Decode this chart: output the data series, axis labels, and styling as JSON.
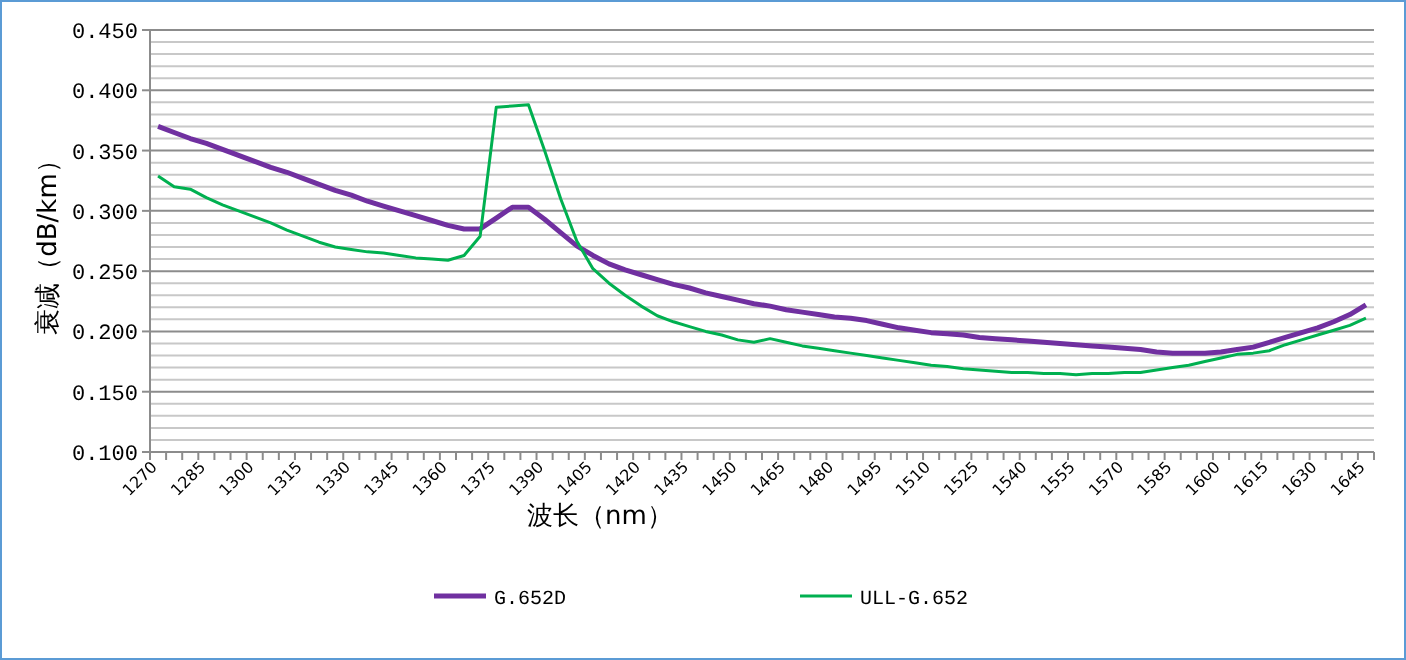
{
  "chart_data": {
    "type": "line",
    "xlabel": "波长（nm）",
    "ylabel": "衰减（dB/km）",
    "categories": [
      "1270",
      null,
      null,
      "1285",
      null,
      null,
      "1300",
      null,
      null,
      "1315",
      null,
      null,
      "1330",
      null,
      null,
      "1345",
      null,
      null,
      "1360",
      null,
      null,
      "1375",
      null,
      null,
      "1390",
      null,
      null,
      "1405",
      null,
      null,
      "1420",
      null,
      null,
      "1435",
      null,
      null,
      "1450",
      null,
      null,
      "1465",
      null,
      null,
      "1480",
      null,
      null,
      "1495",
      null,
      null,
      "1510",
      null,
      null,
      "1525",
      null,
      null,
      "1540",
      null,
      null,
      "1555",
      null,
      null,
      "1570",
      null,
      null,
      "1585",
      null,
      null,
      "1600",
      null,
      null,
      "1615",
      null,
      null,
      "1630",
      null,
      null,
      "1645"
    ],
    "ylim": [
      0.1,
      0.45
    ],
    "yticks": [
      {
        "value": 0.1,
        "label": "0.100"
      },
      {
        "value": 0.15,
        "label": "0.150"
      },
      {
        "value": 0.2,
        "label": "0.200"
      },
      {
        "value": 0.25,
        "label": "0.250"
      },
      {
        "value": 0.3,
        "label": "0.300"
      },
      {
        "value": 0.35,
        "label": "0.350"
      },
      {
        "value": 0.4,
        "label": "0.400"
      },
      {
        "value": 0.45,
        "label": "0.450"
      }
    ],
    "grid": "y",
    "legend": "bottom",
    "marker": "none",
    "line_style": "solid",
    "series": [
      {
        "name": "G.652D",
        "color": "#7030a0",
        "values": [
          0.37,
          0.365,
          0.36,
          0.356,
          0.351,
          0.346,
          0.341,
          0.336,
          0.332,
          0.327,
          0.322,
          0.317,
          0.313,
          0.308,
          0.304,
          0.3,
          0.296,
          0.292,
          0.288,
          0.285,
          0.285,
          0.294,
          0.303,
          0.303,
          0.293,
          0.282,
          0.271,
          0.263,
          0.256,
          0.251,
          0.247,
          0.243,
          0.239,
          0.236,
          0.232,
          0.229,
          0.226,
          0.223,
          0.221,
          0.218,
          0.216,
          0.214,
          0.212,
          0.211,
          0.209,
          0.206,
          0.203,
          0.201,
          0.199,
          0.198,
          0.197,
          0.195,
          0.194,
          0.193,
          0.192,
          0.191,
          0.19,
          0.189,
          0.188,
          0.187,
          0.186,
          0.185,
          0.183,
          0.182,
          0.182,
          0.182,
          0.183,
          0.185,
          0.187,
          0.191,
          0.195,
          0.199,
          0.203,
          0.208,
          0.214,
          0.222
        ]
      },
      {
        "name": "ULL-G.652",
        "color": "#00b050",
        "values": [
          0.329,
          0.32,
          0.318,
          0.311,
          0.305,
          0.3,
          0.295,
          0.29,
          0.284,
          0.279,
          0.274,
          0.27,
          0.268,
          0.266,
          0.265,
          0.263,
          0.261,
          0.26,
          0.259,
          0.263,
          0.279,
          0.386,
          0.387,
          0.388,
          0.35,
          0.31,
          0.275,
          0.252,
          0.24,
          0.23,
          0.221,
          0.213,
          0.208,
          0.204,
          0.2,
          0.197,
          0.193,
          0.191,
          0.194,
          0.191,
          0.188,
          0.186,
          0.184,
          0.182,
          0.18,
          0.178,
          0.176,
          0.174,
          0.172,
          0.171,
          0.169,
          0.168,
          0.167,
          0.166,
          0.166,
          0.165,
          0.165,
          0.164,
          0.165,
          0.165,
          0.166,
          0.166,
          0.168,
          0.17,
          0.172,
          0.175,
          0.178,
          0.181,
          0.182,
          0.184,
          0.189,
          0.193,
          0.197,
          0.201,
          0.205,
          0.211
        ]
      }
    ]
  }
}
